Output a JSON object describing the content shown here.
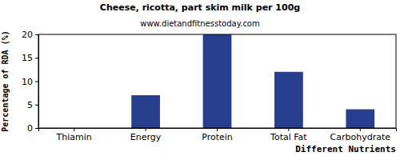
{
  "chart_data": {
    "type": "bar",
    "title": "Cheese, ricotta, part skim milk per 100g",
    "subtitle": "www.dietandfitnesstoday.com",
    "x_label": "Different Nutrients",
    "y_label": "Percentage of RDA (%)",
    "categories": [
      "Thiamin",
      "Energy",
      "Protein",
      "Total Fat",
      "Carbohydrate"
    ],
    "values": [
      0,
      7,
      20,
      12,
      4
    ],
    "color": "#283f8f",
    "ylim": [
      0,
      20
    ],
    "yticks": [
      0,
      5,
      10,
      15,
      20
    ],
    "grid": false
  }
}
